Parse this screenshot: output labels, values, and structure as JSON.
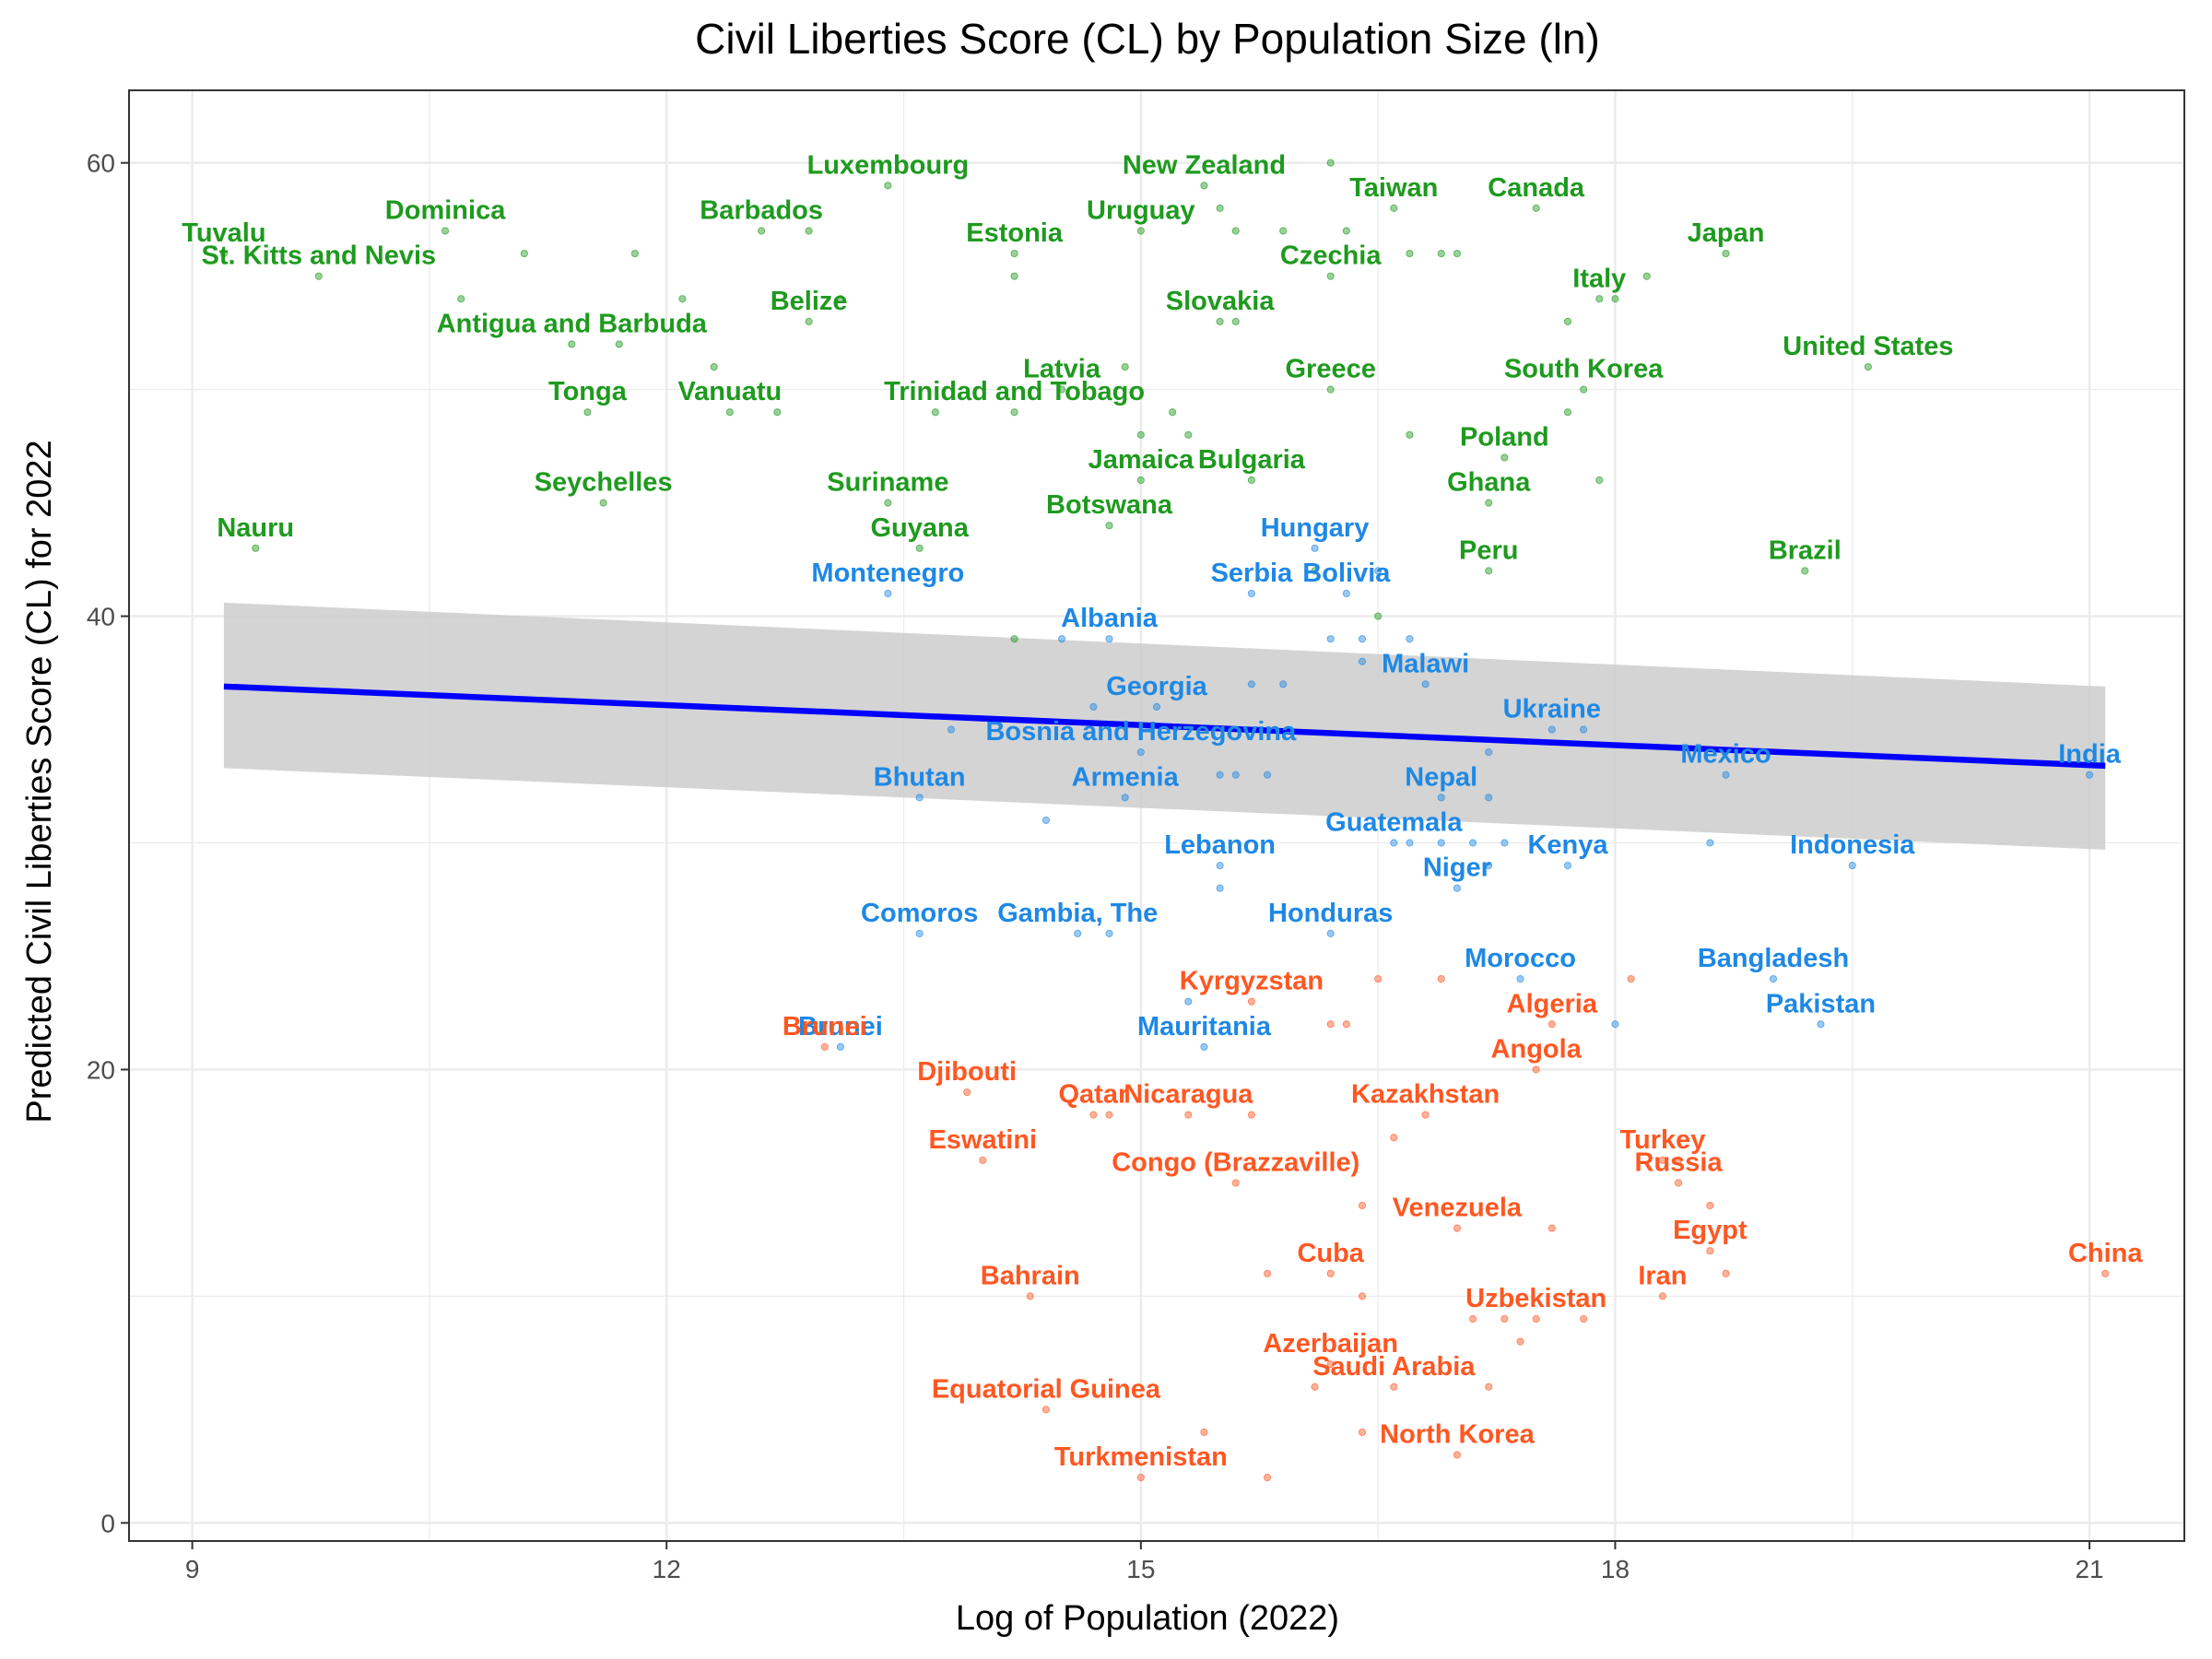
{
  "chart_data": {
    "type": "scatter",
    "title": "Civil Liberties Score (CL) by Population Size (ln)",
    "xlabel": "Log of Population (2022)",
    "ylabel": "Predicted Civil Liberties Score (CL) for 2022",
    "xlim": [
      8.6,
      21.6
    ],
    "ylim": [
      -0.8,
      63.2
    ],
    "x_ticks": [
      9,
      12,
      15,
      18,
      21
    ],
    "y_ticks": [
      0,
      20,
      40,
      60
    ],
    "grid": true,
    "legend": "none",
    "colors": {
      "free": "#1E9A1E",
      "partly_free": "#1E88E5",
      "not_free": "#FF5722",
      "trend": "#0000FF",
      "band": "#CCCCCC"
    },
    "trend": {
      "x": [
        9.2,
        21.1
      ],
      "y": [
        36.9,
        33.4
      ],
      "upper": [
        40.6,
        36.9
      ],
      "lower": [
        33.3,
        29.7
      ]
    },
    "series": [
      {
        "color": "free",
        "points": [
          {
            "label": "Tuvalu",
            "x": 9.2,
            "y": 56
          },
          {
            "label": "Nauru",
            "x": 9.4,
            "y": 43
          },
          {
            "label": "St. Kitts and Nevis",
            "x": 9.8,
            "y": 55
          },
          {
            "label": "Dominica",
            "x": 10.6,
            "y": 57
          },
          {
            "label": "",
            "x": 10.7,
            "y": 54
          },
          {
            "label": "",
            "x": 11.1,
            "y": 56
          },
          {
            "label": "Antigua and Barbuda",
            "x": 11.4,
            "y": 52
          },
          {
            "label": "Seychelles",
            "x": 11.6,
            "y": 45
          },
          {
            "label": "Tonga",
            "x": 11.5,
            "y": 49
          },
          {
            "label": "",
            "x": 11.7,
            "y": 52
          },
          {
            "label": "",
            "x": 11.8,
            "y": 56
          },
          {
            "label": "",
            "x": 12.1,
            "y": 54
          },
          {
            "label": "",
            "x": 12.3,
            "y": 51
          },
          {
            "label": "Vanuatu",
            "x": 12.4,
            "y": 49
          },
          {
            "label": "Barbados",
            "x": 12.6,
            "y": 57
          },
          {
            "label": "",
            "x": 12.7,
            "y": 49
          },
          {
            "label": "",
            "x": 12.9,
            "y": 57
          },
          {
            "label": "Belize",
            "x": 12.9,
            "y": 53
          },
          {
            "label": "",
            "x": 13.1,
            "y": 54
          },
          {
            "label": "Luxembourg",
            "x": 13.4,
            "y": 59
          },
          {
            "label": "Suriname",
            "x": 13.4,
            "y": 45
          },
          {
            "label": "Guyana",
            "x": 13.6,
            "y": 43
          },
          {
            "label": "",
            "x": 13.7,
            "y": 49
          },
          {
            "label": "Trinidad and Tobago",
            "x": 14.2,
            "y": 49
          },
          {
            "label": "",
            "x": 14.2,
            "y": 39
          },
          {
            "label": "Estonia",
            "x": 14.2,
            "y": 56
          },
          {
            "label": "",
            "x": 14.2,
            "y": 55
          },
          {
            "label": "Latvia",
            "x": 14.5,
            "y": 50
          },
          {
            "label": "Botswana",
            "x": 14.8,
            "y": 44
          },
          {
            "label": "Jamaica",
            "x": 15.0,
            "y": 46
          },
          {
            "label": "",
            "x": 14.9,
            "y": 51
          },
          {
            "label": "",
            "x": 15.0,
            "y": 48
          },
          {
            "label": "Uruguay",
            "x": 15.0,
            "y": 57
          },
          {
            "label": "",
            "x": 15.2,
            "y": 49
          },
          {
            "label": "",
            "x": 15.3,
            "y": 48
          },
          {
            "label": "Slovakia",
            "x": 15.5,
            "y": 53
          },
          {
            "label": "",
            "x": 15.6,
            "y": 53
          },
          {
            "label": "",
            "x": 15.5,
            "y": 58
          },
          {
            "label": "New Zealand",
            "x": 15.4,
            "y": 59
          },
          {
            "label": "",
            "x": 15.6,
            "y": 57
          },
          {
            "label": "Bulgaria",
            "x": 15.7,
            "y": 46
          },
          {
            "label": "",
            "x": 15.9,
            "y": 57
          },
          {
            "label": "",
            "x": 16.1,
            "y": 42
          },
          {
            "label": "Greece",
            "x": 16.2,
            "y": 50
          },
          {
            "label": "",
            "x": 16.2,
            "y": 60
          },
          {
            "label": "Czechia",
            "x": 16.2,
            "y": 55
          },
          {
            "label": "",
            "x": 16.3,
            "y": 57
          },
          {
            "label": "",
            "x": 16.5,
            "y": 40
          },
          {
            "label": "Taiwan",
            "x": 16.6,
            "y": 58
          },
          {
            "label": "",
            "x": 16.7,
            "y": 56
          },
          {
            "label": "",
            "x": 16.7,
            "y": 48
          },
          {
            "label": "",
            "x": 16.9,
            "y": 56
          },
          {
            "label": "",
            "x": 17.0,
            "y": 56
          },
          {
            "label": "Ghana",
            "x": 17.2,
            "y": 45
          },
          {
            "label": "Peru",
            "x": 17.2,
            "y": 42
          },
          {
            "label": "Poland",
            "x": 17.3,
            "y": 47
          },
          {
            "label": "Canada",
            "x": 17.5,
            "y": 58
          },
          {
            "label": "South Korea",
            "x": 17.8,
            "y": 50
          },
          {
            "label": "",
            "x": 17.7,
            "y": 49
          },
          {
            "label": "",
            "x": 17.7,
            "y": 53
          },
          {
            "label": "",
            "x": 17.9,
            "y": 46
          },
          {
            "label": "Italy",
            "x": 17.9,
            "y": 54
          },
          {
            "label": "",
            "x": 18.0,
            "y": 54
          },
          {
            "label": "",
            "x": 18.2,
            "y": 55
          },
          {
            "label": "Japan",
            "x": 18.7,
            "y": 56
          },
          {
            "label": "Brazil",
            "x": 19.2,
            "y": 42
          },
          {
            "label": "United States",
            "x": 19.6,
            "y": 51
          }
        ]
      },
      {
        "color": "partly_free",
        "points": [
          {
            "label": "Montenegro",
            "x": 13.4,
            "y": 41
          },
          {
            "label": "Brunei",
            "x": 13.1,
            "y": 21
          },
          {
            "label": "Bhutan",
            "x": 13.6,
            "y": 32
          },
          {
            "label": "Comoros",
            "x": 13.6,
            "y": 26
          },
          {
            "label": "",
            "x": 13.8,
            "y": 35
          },
          {
            "label": "",
            "x": 14.4,
            "y": 31
          },
          {
            "label": "",
            "x": 14.5,
            "y": 39
          },
          {
            "label": "Albania",
            "x": 14.8,
            "y": 39
          },
          {
            "label": "",
            "x": 14.7,
            "y": 36
          },
          {
            "label": "Gambia, The",
            "x": 14.6,
            "y": 26
          },
          {
            "label": "",
            "x": 14.8,
            "y": 26
          },
          {
            "label": "Armenia",
            "x": 14.9,
            "y": 32
          },
          {
            "label": "Bosnia and Herzegovina",
            "x": 15.0,
            "y": 34
          },
          {
            "label": "Georgia",
            "x": 15.1,
            "y": 36
          },
          {
            "label": "Lebanon",
            "x": 15.5,
            "y": 29
          },
          {
            "label": "",
            "x": 15.5,
            "y": 28
          },
          {
            "label": "Mauritania",
            "x": 15.4,
            "y": 21
          },
          {
            "label": "",
            "x": 15.3,
            "y": 23
          },
          {
            "label": "",
            "x": 15.5,
            "y": 33
          },
          {
            "label": "",
            "x": 15.6,
            "y": 33
          },
          {
            "label": "Serbia",
            "x": 15.7,
            "y": 41
          },
          {
            "label": "",
            "x": 15.7,
            "y": 37
          },
          {
            "label": "",
            "x": 15.8,
            "y": 33
          },
          {
            "label": "",
            "x": 15.9,
            "y": 37
          },
          {
            "label": "Honduras",
            "x": 16.2,
            "y": 26
          },
          {
            "label": "Hungary",
            "x": 16.1,
            "y": 43
          },
          {
            "label": "",
            "x": 16.2,
            "y": 39
          },
          {
            "label": "Bolivia",
            "x": 16.3,
            "y": 41
          },
          {
            "label": "",
            "x": 16.4,
            "y": 39
          },
          {
            "label": "",
            "x": 16.4,
            "y": 38
          },
          {
            "label": "",
            "x": 16.5,
            "y": 42
          },
          {
            "label": "Guatemala",
            "x": 16.6,
            "y": 30
          },
          {
            "label": "",
            "x": 16.7,
            "y": 30
          },
          {
            "label": "Malawi",
            "x": 16.8,
            "y": 37
          },
          {
            "label": "",
            "x": 16.7,
            "y": 39
          },
          {
            "label": "",
            "x": 16.9,
            "y": 30
          },
          {
            "label": "Nepal",
            "x": 16.9,
            "y": 32
          },
          {
            "label": "",
            "x": 17.1,
            "y": 30
          },
          {
            "label": "Niger",
            "x": 17.0,
            "y": 28
          },
          {
            "label": "",
            "x": 17.2,
            "y": 29
          },
          {
            "label": "",
            "x": 17.3,
            "y": 30
          },
          {
            "label": "",
            "x": 17.2,
            "y": 32
          },
          {
            "label": "",
            "x": 17.2,
            "y": 34
          },
          {
            "label": "Morocco",
            "x": 17.4,
            "y": 24
          },
          {
            "label": "Ukraine",
            "x": 17.6,
            "y": 35
          },
          {
            "label": "",
            "x": 17.8,
            "y": 35
          },
          {
            "label": "Kenya",
            "x": 17.7,
            "y": 29
          },
          {
            "label": "",
            "x": 18.0,
            "y": 22
          },
          {
            "label": "",
            "x": 18.6,
            "y": 30
          },
          {
            "label": "Mexico",
            "x": 18.7,
            "y": 33
          },
          {
            "label": "Bangladesh",
            "x": 19.0,
            "y": 24
          },
          {
            "label": "Pakistan",
            "x": 19.3,
            "y": 22
          },
          {
            "label": "Indonesia",
            "x": 19.5,
            "y": 29
          },
          {
            "label": "India",
            "x": 21.0,
            "y": 33
          }
        ]
      },
      {
        "color": "not_free",
        "points": [
          {
            "label": "Brunei",
            "x": 13.0,
            "y": 21
          },
          {
            "label": "Djibouti",
            "x": 13.9,
            "y": 19
          },
          {
            "label": "Eswatini",
            "x": 14.0,
            "y": 16
          },
          {
            "label": "Bahrain",
            "x": 14.3,
            "y": 10
          },
          {
            "label": "Equatorial Guinea",
            "x": 14.4,
            "y": 5
          },
          {
            "label": "Qatar",
            "x": 14.7,
            "y": 18
          },
          {
            "label": "",
            "x": 14.8,
            "y": 18
          },
          {
            "label": "Turkmenistan",
            "x": 15.0,
            "y": 2
          },
          {
            "label": "Nicaragua",
            "x": 15.3,
            "y": 18
          },
          {
            "label": "",
            "x": 15.4,
            "y": 4
          },
          {
            "label": "Congo (Brazzaville)",
            "x": 15.6,
            "y": 15
          },
          {
            "label": "Kyrgyzstan",
            "x": 15.7,
            "y": 23
          },
          {
            "label": "",
            "x": 15.7,
            "y": 18
          },
          {
            "label": "",
            "x": 15.8,
            "y": 2
          },
          {
            "label": "",
            "x": 15.8,
            "y": 11
          },
          {
            "label": "",
            "x": 16.1,
            "y": 6
          },
          {
            "label": "Azerbaijan",
            "x": 16.2,
            "y": 7
          },
          {
            "label": "Cuba",
            "x": 16.2,
            "y": 11
          },
          {
            "label": "",
            "x": 16.2,
            "y": 22
          },
          {
            "label": "",
            "x": 16.3,
            "y": 22
          },
          {
            "label": "",
            "x": 16.4,
            "y": 4
          },
          {
            "label": "",
            "x": 16.4,
            "y": 10
          },
          {
            "label": "",
            "x": 16.4,
            "y": 14
          },
          {
            "label": "",
            "x": 16.5,
            "y": 24
          },
          {
            "label": "",
            "x": 16.6,
            "y": 17
          },
          {
            "label": "Saudi Arabia",
            "x": 16.6,
            "y": 6
          },
          {
            "label": "Kazakhstan",
            "x": 16.8,
            "y": 18
          },
          {
            "label": "",
            "x": 16.9,
            "y": 24
          },
          {
            "label": "North Korea",
            "x": 17.0,
            "y": 3
          },
          {
            "label": "Venezuela",
            "x": 17.0,
            "y": 13
          },
          {
            "label": "",
            "x": 17.1,
            "y": 9
          },
          {
            "label": "",
            "x": 17.2,
            "y": 6
          },
          {
            "label": "",
            "x": 17.3,
            "y": 9
          },
          {
            "label": "",
            "x": 17.4,
            "y": 8
          },
          {
            "label": "Uzbekistan",
            "x": 17.5,
            "y": 9
          },
          {
            "label": "Angola",
            "x": 17.5,
            "y": 20
          },
          {
            "label": "Algeria",
            "x": 17.6,
            "y": 22
          },
          {
            "label": "",
            "x": 17.6,
            "y": 13
          },
          {
            "label": "",
            "x": 17.8,
            "y": 9
          },
          {
            "label": "",
            "x": 18.1,
            "y": 24
          },
          {
            "label": "Iran",
            "x": 18.3,
            "y": 10
          },
          {
            "label": "Turkey",
            "x": 18.3,
            "y": 16
          },
          {
            "label": "",
            "x": 18.4,
            "y": 16
          },
          {
            "label": "Russia",
            "x": 18.4,
            "y": 15
          },
          {
            "label": "Egypt",
            "x": 18.6,
            "y": 12
          },
          {
            "label": "",
            "x": 18.6,
            "y": 14
          },
          {
            "label": "",
            "x": 18.7,
            "y": 11
          },
          {
            "label": "China",
            "x": 21.1,
            "y": 11
          }
        ]
      }
    ]
  }
}
